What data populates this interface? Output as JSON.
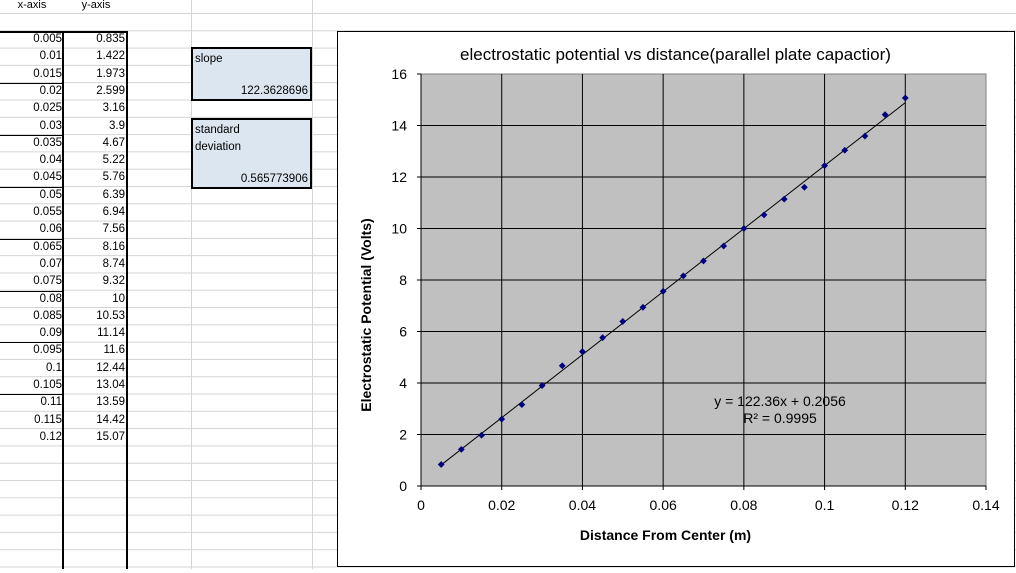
{
  "sheet": {
    "headers": [
      "x-axis",
      "y-axis"
    ],
    "rows": [
      [
        "0.005",
        "0.835"
      ],
      [
        "0.01",
        "1.422"
      ],
      [
        "0.015",
        "1.973"
      ],
      [
        "0.02",
        "2.599"
      ],
      [
        "0.025",
        "3.16"
      ],
      [
        "0.03",
        "3.9"
      ],
      [
        "0.035",
        "4.67"
      ],
      [
        "0.04",
        "5.22"
      ],
      [
        "0.045",
        "5.76"
      ],
      [
        "0.05",
        "6.39"
      ],
      [
        "0.055",
        "6.94"
      ],
      [
        "0.06",
        "7.56"
      ],
      [
        "0.065",
        "8.16"
      ],
      [
        "0.07",
        "8.74"
      ],
      [
        "0.075",
        "9.32"
      ],
      [
        "0.08",
        "10"
      ],
      [
        "0.085",
        "10.53"
      ],
      [
        "0.09",
        "11.14"
      ],
      [
        "0.095",
        "11.6"
      ],
      [
        "0.1",
        "12.44"
      ],
      [
        "0.105",
        "13.04"
      ],
      [
        "0.11",
        "13.59"
      ],
      [
        "0.115",
        "14.42"
      ],
      [
        "0.12",
        "15.07"
      ]
    ]
  },
  "stats": {
    "slope_label": "slope",
    "slope_value": "122.3628696",
    "std_label_line1": "standard",
    "std_label_line2": "deviation",
    "std_value": "0.565773906"
  },
  "chart_data": {
    "type": "scatter",
    "title": "electrostatic potential vs distance(parallel plate capactior)",
    "xlabel": "Distance From Center (m)",
    "ylabel": "Electrostatic Potential  (Volts)",
    "xlim": [
      0,
      0.14
    ],
    "ylim": [
      0,
      16
    ],
    "xticks": [
      "0",
      "0.02",
      "0.04",
      "0.06",
      "0.08",
      "0.1",
      "0.12",
      "0.14"
    ],
    "yticks": [
      "0",
      "2",
      "4",
      "6",
      "8",
      "10",
      "12",
      "14",
      "16"
    ],
    "grid": true,
    "plot_background": "#c0c0c0",
    "marker_color": "#000080",
    "series": [
      {
        "x": [
          0.005,
          0.01,
          0.015,
          0.02,
          0.025,
          0.03,
          0.035,
          0.04,
          0.045,
          0.05,
          0.055,
          0.06,
          0.065,
          0.07,
          0.075,
          0.08,
          0.085,
          0.09,
          0.095,
          0.1,
          0.105,
          0.11,
          0.115,
          0.12
        ],
        "y": [
          0.835,
          1.422,
          1.973,
          2.599,
          3.16,
          3.9,
          4.67,
          5.22,
          5.76,
          6.39,
          6.94,
          7.56,
          8.16,
          8.74,
          9.32,
          10,
          10.53,
          11.14,
          11.6,
          12.44,
          13.04,
          13.59,
          14.42,
          15.07
        ]
      }
    ],
    "trendline": {
      "slope": 122.36,
      "intercept": 0.2056,
      "x_range": [
        0.005,
        0.12
      ]
    },
    "annotations": [
      "y = 122.36x + 0.2056",
      "R² = 0.9995"
    ]
  }
}
